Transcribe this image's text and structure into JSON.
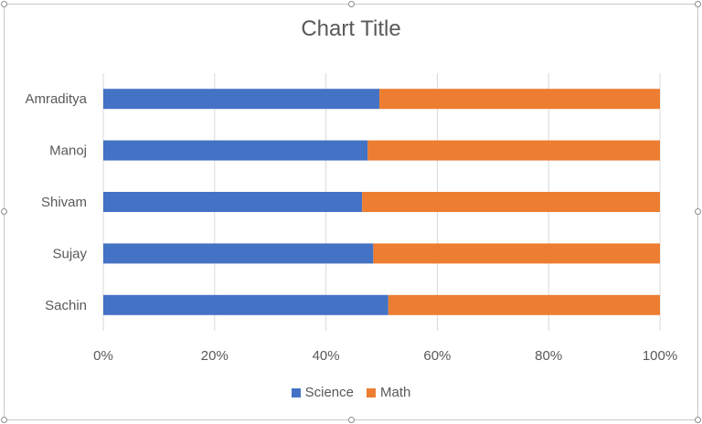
{
  "chart_data": {
    "type": "bar",
    "orientation": "horizontal",
    "stacked": "100%",
    "title": "Chart Title",
    "categories": [
      "Amraditya",
      "Manoj",
      "Shivam",
      "Sujay",
      "Sachin"
    ],
    "series": [
      {
        "name": "Science",
        "color": "#4472C4",
        "values": [
          49.6,
          47.5,
          46.5,
          48.5,
          51.2
        ]
      },
      {
        "name": "Math",
        "color": "#ED7D31",
        "values": [
          50.4,
          52.5,
          53.5,
          51.5,
          48.8
        ]
      }
    ],
    "x_ticks": [
      "0%",
      "20%",
      "40%",
      "60%",
      "80%",
      "100%"
    ],
    "xlim": [
      0,
      100
    ],
    "grid": "vertical",
    "legend_position": "bottom"
  }
}
